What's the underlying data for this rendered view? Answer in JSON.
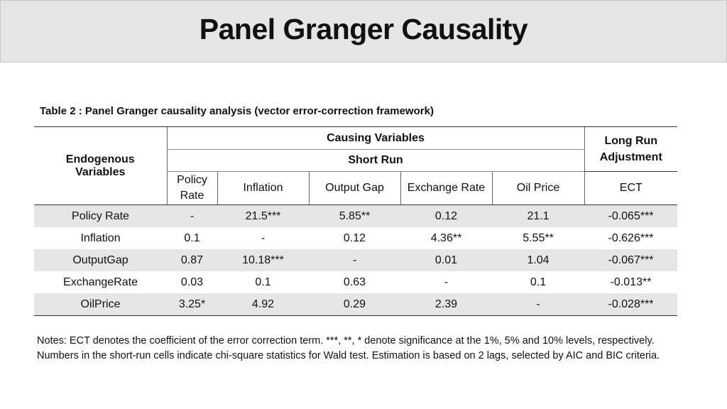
{
  "header": {
    "title": "Panel Granger Causality"
  },
  "table": {
    "caption": "Table 2 : Panel Granger causality analysis (vector error-correction framework)",
    "headers": {
      "endogenous": "Endogenous Variables",
      "causing": "Causing Variables",
      "short_run": "Short Run",
      "long_run": "Long Run Adjustment",
      "policy_rate_line1": "Policy",
      "policy_rate_line2": "Rate",
      "columns": [
        "Inflation",
        "Output Gap",
        "Exchange Rate",
        "Oil Price",
        "ECT"
      ]
    },
    "rows": [
      {
        "label": "Policy Rate",
        "cells": [
          "-",
          "21.5***",
          "5.85**",
          "0.12",
          "21.1",
          "-0.065***"
        ]
      },
      {
        "label": "Inflation",
        "cells": [
          "0.1",
          "-",
          "0.12",
          "4.36**",
          "5.55**",
          "-0.626***"
        ]
      },
      {
        "label": "OutputGap",
        "cells": [
          "0.87",
          "10.18***",
          "-",
          "0.01",
          "1.04",
          "-0.067***"
        ]
      },
      {
        "label": "ExchangeRate",
        "cells": [
          "0.03",
          "0.1",
          "0.63",
          "-",
          "0.1",
          "-0.013**"
        ]
      },
      {
        "label": "OilPrice",
        "cells": [
          "3.25*",
          "4.92",
          "0.29",
          "2.39",
          "-",
          "-0.028***"
        ]
      }
    ]
  },
  "notes": "Notes: ECT denotes the coefficient of the error correction term. ***, **, * denote significance at the 1%, 5% and 10% levels, respectively. Numbers in the short-run cells indicate chi-square statistics for Wald test. Estimation is based on 2 lags, selected by AIC and BIC criteria."
}
